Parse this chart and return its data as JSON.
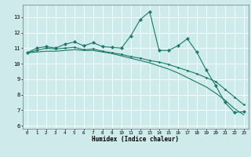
{
  "xlabel": "Humidex (Indice chaleur)",
  "xlim": [
    -0.5,
    23.5
  ],
  "ylim": [
    5.8,
    13.8
  ],
  "yticks": [
    6,
    7,
    8,
    9,
    10,
    11,
    12,
    13
  ],
  "xticks": [
    0,
    1,
    2,
    3,
    4,
    5,
    6,
    7,
    8,
    9,
    10,
    11,
    12,
    13,
    14,
    15,
    16,
    17,
    18,
    19,
    20,
    21,
    22,
    23
  ],
  "bg_color": "#ceeaea",
  "grid_color": "#ffffff",
  "line_color": "#1a7a6a",
  "line1_x": [
    0,
    1,
    2,
    3,
    4,
    5,
    6,
    7,
    8,
    9,
    10,
    11,
    12,
    13,
    14,
    15,
    16,
    17,
    18,
    19,
    20,
    21,
    22,
    23
  ],
  "line1_y": [
    10.7,
    11.0,
    11.1,
    11.0,
    11.25,
    11.4,
    11.15,
    11.35,
    11.1,
    11.05,
    11.0,
    11.8,
    12.85,
    13.35,
    10.85,
    10.85,
    11.15,
    11.6,
    10.75,
    9.6,
    8.6,
    7.5,
    6.85,
    6.9
  ],
  "line2_x": [
    0,
    1,
    2,
    3,
    4,
    5,
    6,
    7,
    8,
    9,
    10,
    11,
    12,
    13,
    14,
    15,
    16,
    17,
    18,
    19,
    20,
    21,
    22,
    23
  ],
  "line2_y": [
    10.7,
    10.85,
    11.0,
    10.95,
    11.0,
    11.05,
    10.9,
    10.95,
    10.8,
    10.7,
    10.6,
    10.45,
    10.35,
    10.2,
    10.1,
    9.95,
    9.75,
    9.55,
    9.35,
    9.1,
    8.85,
    8.35,
    7.85,
    7.35
  ],
  "line3_x": [
    0,
    1,
    2,
    3,
    4,
    5,
    6,
    7,
    8,
    9,
    10,
    11,
    12,
    13,
    14,
    15,
    16,
    17,
    18,
    19,
    20,
    21,
    22,
    23
  ],
  "line3_y": [
    10.7,
    10.75,
    10.8,
    10.8,
    10.85,
    10.9,
    10.85,
    10.85,
    10.75,
    10.65,
    10.5,
    10.35,
    10.2,
    10.05,
    9.85,
    9.65,
    9.4,
    9.1,
    8.8,
    8.5,
    8.1,
    7.65,
    7.1,
    6.7
  ]
}
